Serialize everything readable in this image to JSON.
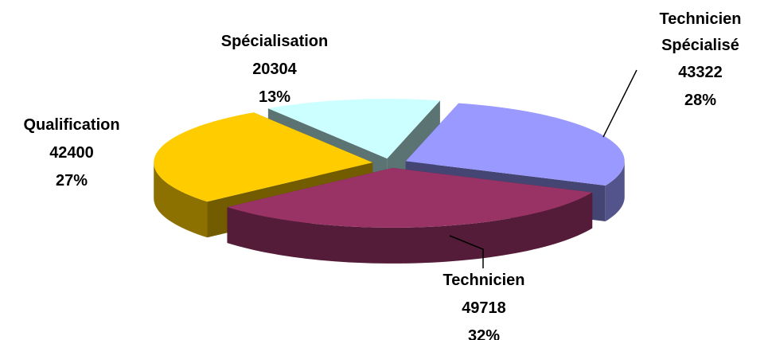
{
  "chart_data": {
    "type": "pie3d",
    "categories": [
      "Technicien Spécialisé",
      "Technicien",
      "Qualification",
      "Spécialisation"
    ],
    "values": [
      43322,
      49718,
      42400,
      20304
    ],
    "percent_labels": [
      "28%",
      "32%",
      "27%",
      "13%"
    ],
    "colors": [
      "#9999ff",
      "#993366",
      "#ffcc00",
      "#ccffff"
    ]
  }
}
